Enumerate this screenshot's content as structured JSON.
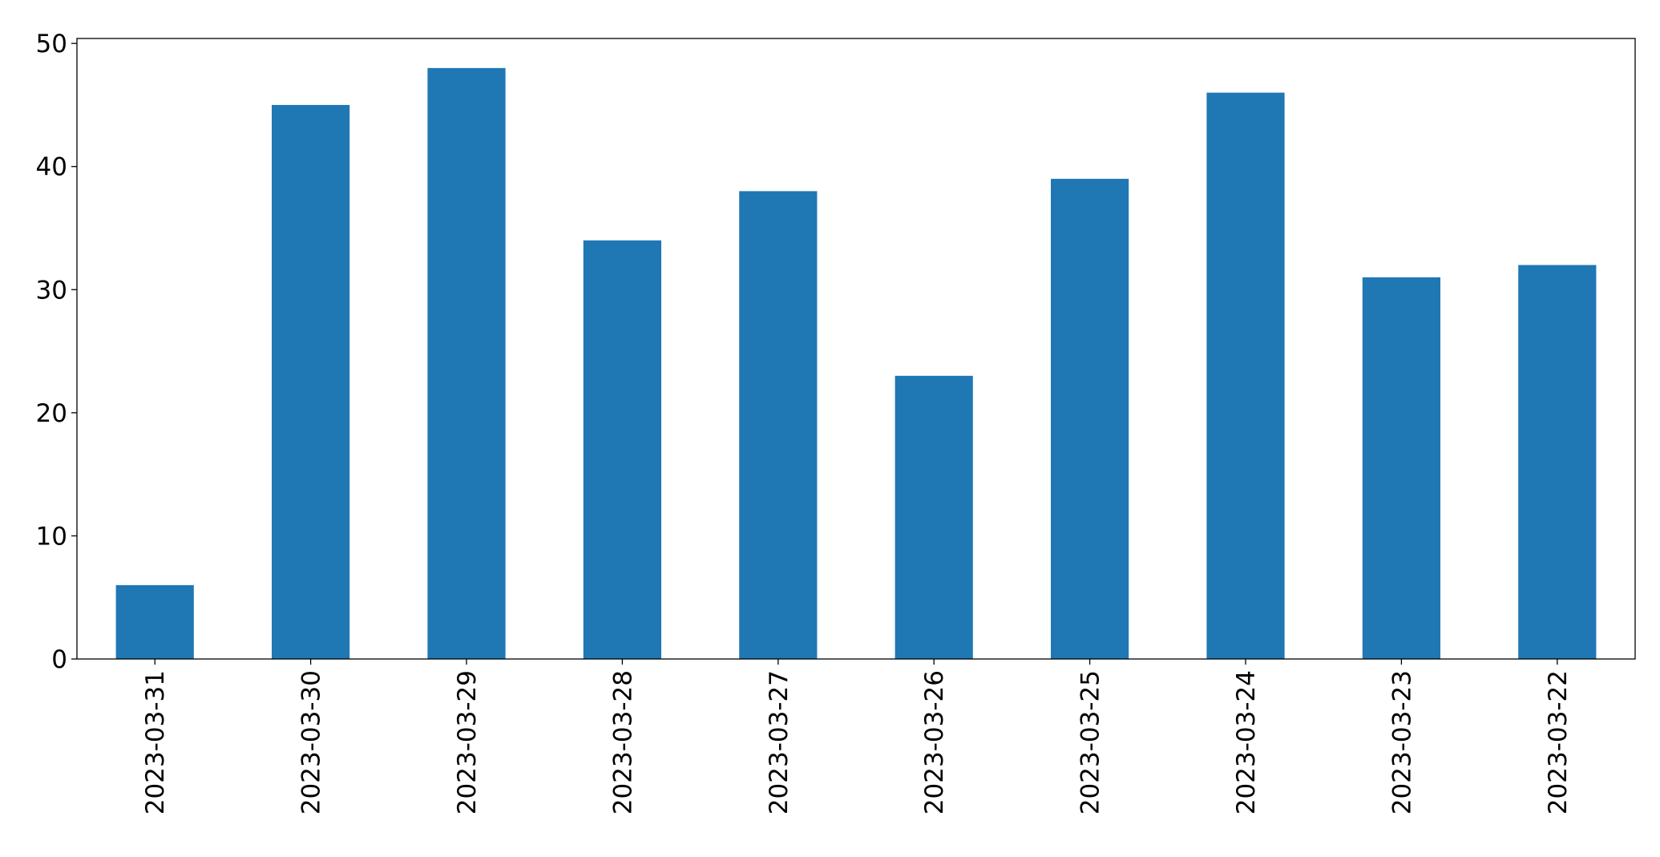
{
  "chart_data": {
    "type": "bar",
    "categories": [
      "2023-03-31",
      "2023-03-30",
      "2023-03-29",
      "2023-03-28",
      "2023-03-27",
      "2023-03-26",
      "2023-03-25",
      "2023-03-24",
      "2023-03-23",
      "2023-03-22"
    ],
    "values": [
      6,
      45,
      48,
      34,
      38,
      23,
      39,
      46,
      31,
      32
    ],
    "color": "#1f77b4",
    "ylim": [
      0,
      50.4
    ],
    "yticks": [
      0,
      10,
      20,
      30,
      40,
      50
    ],
    "grid": false
  }
}
